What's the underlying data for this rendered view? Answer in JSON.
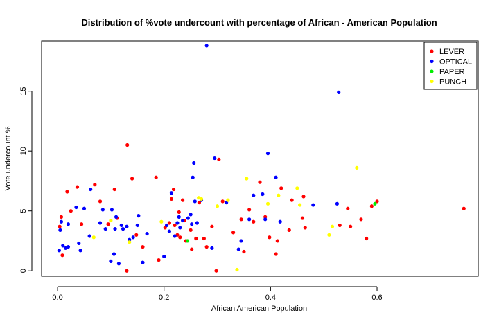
{
  "chart_data": {
    "type": "scatter",
    "title": "Distribution of %vote undercount with percentage of African - American Population",
    "xlabel": "African American Population",
    "ylabel": "Vote undercount %",
    "xlim": [
      -0.03,
      0.79
    ],
    "ylim": [
      -0.45,
      19.2
    ],
    "x_ticks": [
      0.0,
      0.2,
      0.4,
      0.6
    ],
    "x_tick_labels": [
      "0.0",
      "0.2",
      "0.4",
      "0.6"
    ],
    "y_ticks": [
      0,
      5,
      10,
      15
    ],
    "y_tick_labels": [
      "0",
      "5",
      "10",
      "15"
    ],
    "legend_position": "top-right",
    "series": [
      {
        "name": "LEVER",
        "color": "#ff0000",
        "points": [
          [
            0.004,
            3.7
          ],
          [
            0.007,
            4.5
          ],
          [
            0.009,
            1.3
          ],
          [
            0.018,
            6.6
          ],
          [
            0.025,
            5.0
          ],
          [
            0.037,
            7.0
          ],
          [
            0.045,
            3.9
          ],
          [
            0.07,
            7.2
          ],
          [
            0.08,
            5.8
          ],
          [
            0.095,
            3.9
          ],
          [
            0.107,
            6.8
          ],
          [
            0.112,
            4.4
          ],
          [
            0.13,
            0.0
          ],
          [
            0.131,
            10.5
          ],
          [
            0.14,
            7.7
          ],
          [
            0.148,
            3.0
          ],
          [
            0.16,
            2.0
          ],
          [
            0.185,
            7.8
          ],
          [
            0.19,
            0.9
          ],
          [
            0.202,
            3.6
          ],
          [
            0.21,
            4.0
          ],
          [
            0.214,
            6.0
          ],
          [
            0.218,
            6.8
          ],
          [
            0.22,
            3.8
          ],
          [
            0.225,
            3.0
          ],
          [
            0.228,
            4.9
          ],
          [
            0.23,
            2.8
          ],
          [
            0.235,
            5.9
          ],
          [
            0.238,
            4.2
          ],
          [
            0.241,
            2.5
          ],
          [
            0.25,
            3.4
          ],
          [
            0.252,
            1.8
          ],
          [
            0.26,
            2.7
          ],
          [
            0.266,
            5.7
          ],
          [
            0.275,
            2.7
          ],
          [
            0.28,
            2.0
          ],
          [
            0.29,
            3.7
          ],
          [
            0.298,
            0.0
          ],
          [
            0.303,
            9.3
          ],
          [
            0.31,
            5.8
          ],
          [
            0.33,
            3.2
          ],
          [
            0.345,
            4.3
          ],
          [
            0.35,
            1.6
          ],
          [
            0.36,
            5.1
          ],
          [
            0.368,
            4.1
          ],
          [
            0.38,
            7.4
          ],
          [
            0.39,
            4.5
          ],
          [
            0.398,
            2.8
          ],
          [
            0.41,
            1.4
          ],
          [
            0.413,
            2.5
          ],
          [
            0.42,
            6.9
          ],
          [
            0.435,
            3.4
          ],
          [
            0.44,
            5.9
          ],
          [
            0.46,
            4.4
          ],
          [
            0.462,
            6.2
          ],
          [
            0.465,
            3.6
          ],
          [
            0.53,
            3.8
          ],
          [
            0.545,
            5.2
          ],
          [
            0.55,
            3.7
          ],
          [
            0.57,
            4.3
          ],
          [
            0.58,
            2.7
          ],
          [
            0.59,
            5.4
          ],
          [
            0.6,
            5.8
          ],
          [
            0.763,
            5.2
          ]
        ]
      },
      {
        "name": "OPTICAL",
        "color": "#0000ff",
        "points": [
          [
            0.003,
            1.7
          ],
          [
            0.005,
            3.4
          ],
          [
            0.007,
            4.1
          ],
          [
            0.01,
            2.1
          ],
          [
            0.015,
            1.9
          ],
          [
            0.02,
            3.9
          ],
          [
            0.02,
            2.0
          ],
          [
            0.035,
            5.3
          ],
          [
            0.04,
            2.3
          ],
          [
            0.043,
            1.7
          ],
          [
            0.05,
            5.2
          ],
          [
            0.06,
            2.9
          ],
          [
            0.062,
            6.8
          ],
          [
            0.08,
            4.0
          ],
          [
            0.085,
            5.1
          ],
          [
            0.09,
            3.5
          ],
          [
            0.1,
            0.8
          ],
          [
            0.102,
            5.1
          ],
          [
            0.106,
            1.4
          ],
          [
            0.108,
            3.5
          ],
          [
            0.11,
            4.5
          ],
          [
            0.115,
            0.6
          ],
          [
            0.12,
            3.8
          ],
          [
            0.123,
            3.5
          ],
          [
            0.13,
            3.7
          ],
          [
            0.135,
            2.6
          ],
          [
            0.142,
            2.8
          ],
          [
            0.15,
            3.8
          ],
          [
            0.152,
            4.6
          ],
          [
            0.16,
            0.7
          ],
          [
            0.168,
            3.1
          ],
          [
            0.2,
            1.2
          ],
          [
            0.205,
            3.8
          ],
          [
            0.21,
            3.3
          ],
          [
            0.214,
            6.5
          ],
          [
            0.22,
            2.9
          ],
          [
            0.225,
            4.0
          ],
          [
            0.228,
            4.5
          ],
          [
            0.23,
            3.6
          ],
          [
            0.235,
            4.2
          ],
          [
            0.245,
            4.4
          ],
          [
            0.25,
            4.7
          ],
          [
            0.252,
            3.9
          ],
          [
            0.254,
            7.8
          ],
          [
            0.256,
            9.0
          ],
          [
            0.258,
            5.8
          ],
          [
            0.262,
            4.0
          ],
          [
            0.27,
            5.9
          ],
          [
            0.28,
            18.8
          ],
          [
            0.29,
            1.9
          ],
          [
            0.295,
            9.4
          ],
          [
            0.317,
            5.7
          ],
          [
            0.34,
            1.8
          ],
          [
            0.345,
            2.5
          ],
          [
            0.36,
            4.3
          ],
          [
            0.368,
            6.3
          ],
          [
            0.385,
            6.4
          ],
          [
            0.39,
            4.3
          ],
          [
            0.395,
            9.8
          ],
          [
            0.41,
            7.8
          ],
          [
            0.418,
            4.1
          ],
          [
            0.48,
            5.5
          ],
          [
            0.525,
            5.6
          ],
          [
            0.528,
            14.9
          ]
        ]
      },
      {
        "name": "PAPER",
        "color": "#00ee00",
        "points": [
          [
            0.244,
            2.5
          ],
          [
            0.596,
            5.6
          ]
        ]
      },
      {
        "name": "PUNCH",
        "color": "#ffff00",
        "points": [
          [
            0.068,
            2.8
          ],
          [
            0.1,
            4.2
          ],
          [
            0.135,
            2.4
          ],
          [
            0.195,
            4.1
          ],
          [
            0.265,
            6.1
          ],
          [
            0.27,
            6.0
          ],
          [
            0.3,
            5.4
          ],
          [
            0.32,
            5.9
          ],
          [
            0.337,
            0.1
          ],
          [
            0.355,
            7.7
          ],
          [
            0.395,
            5.6
          ],
          [
            0.415,
            6.3
          ],
          [
            0.45,
            6.9
          ],
          [
            0.455,
            5.5
          ],
          [
            0.51,
            3.0
          ],
          [
            0.516,
            3.7
          ],
          [
            0.562,
            8.6
          ]
        ]
      }
    ]
  }
}
